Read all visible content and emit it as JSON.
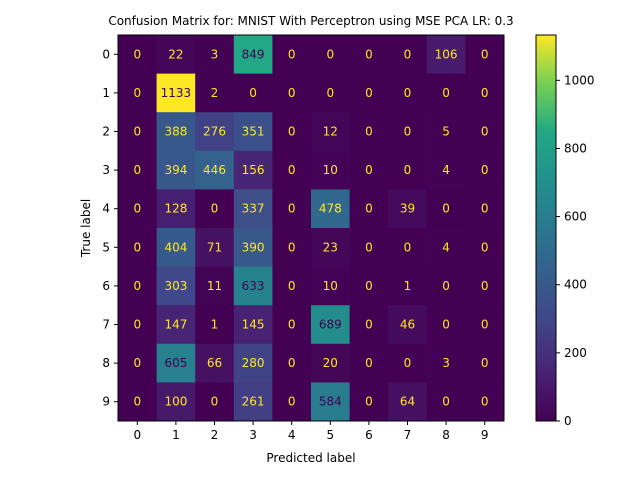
{
  "chart_data": {
    "type": "heatmap",
    "title": "Confusion Matrix for: MNIST With Perceptron using MSE PCA LR: 0.3",
    "xlabel": "Predicted label",
    "ylabel": "True label",
    "x_categories": [
      "0",
      "1",
      "2",
      "3",
      "4",
      "5",
      "6",
      "7",
      "8",
      "9"
    ],
    "y_categories": [
      "0",
      "1",
      "2",
      "3",
      "4",
      "5",
      "6",
      "7",
      "8",
      "9"
    ],
    "values": [
      [
        0,
        22,
        3,
        849,
        0,
        0,
        0,
        0,
        106,
        0
      ],
      [
        0,
        1133,
        2,
        0,
        0,
        0,
        0,
        0,
        0,
        0
      ],
      [
        0,
        388,
        276,
        351,
        0,
        12,
        0,
        0,
        5,
        0
      ],
      [
        0,
        394,
        446,
        156,
        0,
        10,
        0,
        0,
        4,
        0
      ],
      [
        0,
        128,
        0,
        337,
        0,
        478,
        0,
        39,
        0,
        0
      ],
      [
        0,
        404,
        71,
        390,
        0,
        23,
        0,
        0,
        4,
        0
      ],
      [
        0,
        303,
        11,
        633,
        0,
        10,
        0,
        1,
        0,
        0
      ],
      [
        0,
        147,
        1,
        145,
        0,
        689,
        0,
        46,
        0,
        0
      ],
      [
        0,
        605,
        66,
        280,
        0,
        20,
        0,
        0,
        3,
        0
      ],
      [
        0,
        100,
        0,
        261,
        0,
        584,
        0,
        64,
        0,
        0
      ]
    ],
    "colormap": "viridis",
    "color_range": [
      0,
      1133
    ],
    "colorbar_ticks": [
      0,
      200,
      400,
      600,
      800,
      1000
    ],
    "text_color_light": "#fde725",
    "text_color_dark": "#440154"
  }
}
